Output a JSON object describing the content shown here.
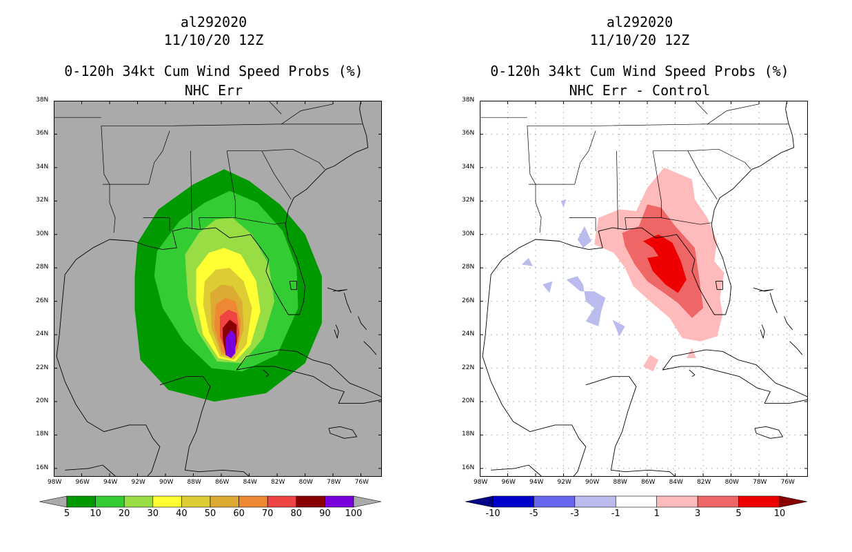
{
  "left_panel": {
    "storm_id": "al292020",
    "datetime": "11/10/20 12Z",
    "title": "0-120h 34kt Cum Wind Speed Probs (%)",
    "subtitle": "NHC Err",
    "background_color": "#aaaaaa",
    "colorbar": {
      "labels": [
        "5",
        "10",
        "20",
        "30",
        "40",
        "50",
        "60",
        "70",
        "80",
        "90",
        "100"
      ],
      "colors": [
        "#009900",
        "#33cc33",
        "#99dd44",
        "#ffff33",
        "#ddcc33",
        "#ddaa33",
        "#ee8833",
        "#ee4444",
        "#880000",
        "#7700dd"
      ],
      "end_color": "#aaaaaa"
    }
  },
  "right_panel": {
    "storm_id": "al292020",
    "datetime": "11/10/20 12Z",
    "title": "0-120h 34kt Cum Wind Speed Probs (%)",
    "subtitle": "NHC Err - Control",
    "background_color": "#ffffff",
    "colorbar": {
      "labels": [
        "-10",
        "-5",
        "-3",
        "-1",
        "1",
        "3",
        "5",
        "10"
      ],
      "colors": [
        "#0000cc",
        "#6666ee",
        "#bbbbee",
        "#ffffff",
        "#ffbbbb",
        "#ee6666",
        "#ee0000"
      ],
      "end_low": "#000088",
      "end_high": "#880000"
    }
  },
  "axes": {
    "lat_labels": [
      "38N",
      "36N",
      "34N",
      "32N",
      "30N",
      "28N",
      "26N",
      "24N",
      "22N",
      "20N",
      "18N",
      "16N"
    ],
    "lon_labels": [
      "98W",
      "96W",
      "94W",
      "92W",
      "90W",
      "88W",
      "86W",
      "84W",
      "82W",
      "80W",
      "78W",
      "76W"
    ],
    "lat_range": [
      15.5,
      38
    ],
    "lon_range": [
      -98,
      -74.5
    ]
  }
}
